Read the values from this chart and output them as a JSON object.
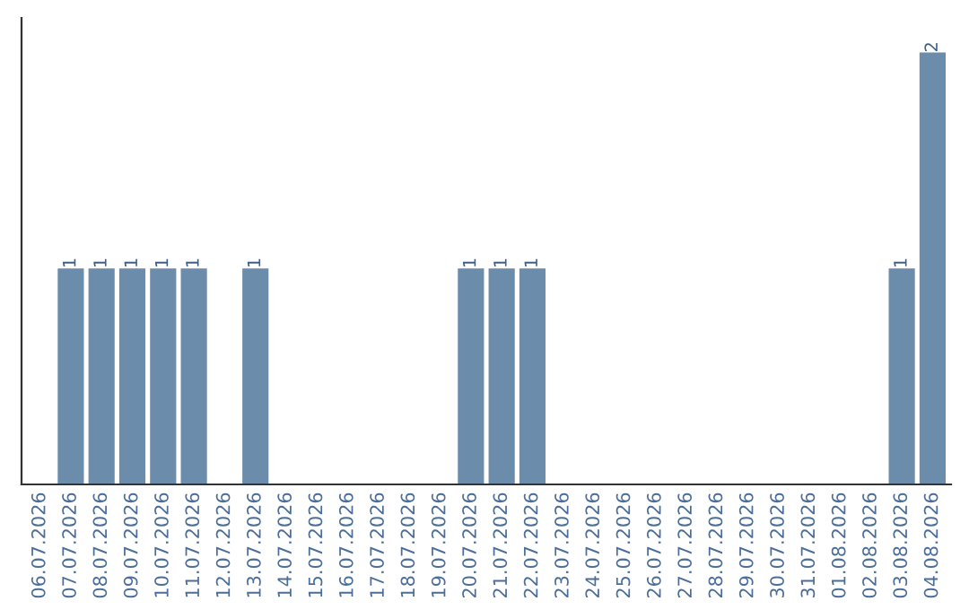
{
  "chart_data": {
    "type": "bar",
    "categories": [
      "06.07.2026",
      "07.07.2026",
      "08.07.2026",
      "09.07.2026",
      "10.07.2026",
      "11.07.2026",
      "12.07.2026",
      "13.07.2026",
      "14.07.2026",
      "15.07.2026",
      "16.07.2026",
      "17.07.2026",
      "18.07.2026",
      "19.07.2026",
      "20.07.2026",
      "21.07.2026",
      "22.07.2026",
      "23.07.2026",
      "24.07.2026",
      "25.07.2026",
      "26.07.2026",
      "27.07.2026",
      "28.07.2026",
      "29.07.2026",
      "30.07.2026",
      "31.07.2026",
      "01.08.2026",
      "02.08.2026",
      "03.08.2026",
      "04.08.2026"
    ],
    "values": [
      0,
      1,
      1,
      1,
      1,
      1,
      0,
      1,
      0,
      0,
      0,
      0,
      0,
      0,
      1,
      1,
      1,
      0,
      0,
      0,
      0,
      0,
      0,
      0,
      0,
      0,
      0,
      0,
      1,
      2
    ],
    "value_labels": [
      null,
      "1",
      "1",
      "1",
      "1",
      "1",
      null,
      "1",
      null,
      null,
      null,
      null,
      null,
      null,
      "1",
      "1",
      "1",
      null,
      null,
      null,
      null,
      null,
      null,
      null,
      null,
      null,
      null,
      null,
      "1",
      "2"
    ],
    "color": "#6b8cab",
    "grid": false,
    "legend": false
  }
}
